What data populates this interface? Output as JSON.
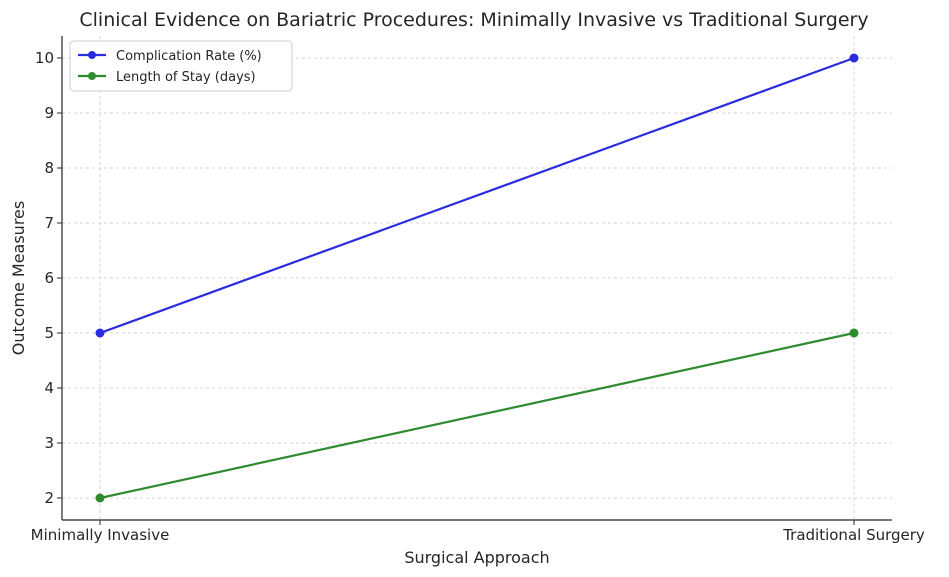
{
  "chart_data": {
    "type": "line",
    "title": "Clinical Evidence on Bariatric Procedures: Minimally Invasive vs Traditional Surgery",
    "xlabel": "Surgical Approach",
    "ylabel": "Outcome Measures",
    "categories": [
      "Minimally Invasive",
      "Traditional Surgery"
    ],
    "ylim": [
      1.6,
      10.4
    ],
    "yticks": [
      2,
      3,
      4,
      5,
      6,
      7,
      8,
      9,
      10
    ],
    "grid": true,
    "legend_position": "top-left",
    "series": [
      {
        "name": "Complication Rate (%)",
        "values": [
          5,
          10
        ],
        "color": "#2b2be0"
      },
      {
        "name": "Length of Stay (days)",
        "values": [
          2,
          5
        ],
        "color": "#2e8b2e"
      }
    ]
  }
}
